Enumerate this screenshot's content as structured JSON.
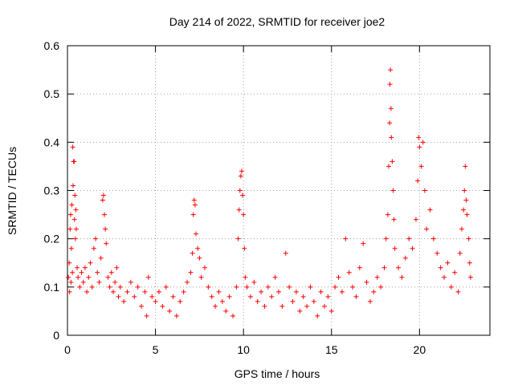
{
  "chart_data": {
    "type": "scatter",
    "title": "Day 214 of 2022, SRMTID for receiver joe2",
    "xlabel": "GPS time / hours",
    "ylabel": "SRMTID / TECUs",
    "xlim": [
      0,
      24
    ],
    "ylim": [
      0,
      0.6
    ],
    "xticks": [
      0,
      5,
      10,
      15,
      20
    ],
    "yticks": [
      0,
      0.1,
      0.2,
      0.3,
      0.4,
      0.5,
      0.6
    ],
    "xtick_labels": [
      "0",
      "5",
      "10",
      "15",
      "20"
    ],
    "ytick_labels": [
      "0",
      "0.1",
      "0.2",
      "0.3",
      "0.4",
      "0.5",
      "0.6"
    ],
    "grid": true,
    "marker": "+",
    "color": "#ff0000",
    "series": [
      {
        "name": "SRMTID",
        "points": [
          [
            0.05,
            0.12
          ],
          [
            0.1,
            0.15
          ],
          [
            0.12,
            0.09
          ],
          [
            0.15,
            0.22
          ],
          [
            0.18,
            0.25
          ],
          [
            0.2,
            0.11
          ],
          [
            0.22,
            0.18
          ],
          [
            0.25,
            0.27
          ],
          [
            0.28,
            0.13
          ],
          [
            0.3,
            0.39
          ],
          [
            0.32,
            0.31
          ],
          [
            0.35,
            0.36
          ],
          [
            0.38,
            0.36
          ],
          [
            0.4,
            0.24
          ],
          [
            0.42,
            0.29
          ],
          [
            0.45,
            0.2
          ],
          [
            0.48,
            0.26
          ],
          [
            0.5,
            0.22
          ],
          [
            0.55,
            0.14
          ],
          [
            0.6,
            0.12
          ],
          [
            0.7,
            0.1
          ],
          [
            0.8,
            0.13
          ],
          [
            0.9,
            0.11
          ],
          [
            1.0,
            0.14
          ],
          [
            1.1,
            0.09
          ],
          [
            1.2,
            0.12
          ],
          [
            1.3,
            0.15
          ],
          [
            1.4,
            0.1
          ],
          [
            1.5,
            0.18
          ],
          [
            1.6,
            0.2
          ],
          [
            1.7,
            0.13
          ],
          [
            1.8,
            0.11
          ],
          [
            1.9,
            0.16
          ],
          [
            2.0,
            0.28
          ],
          [
            2.05,
            0.29
          ],
          [
            2.1,
            0.25
          ],
          [
            2.15,
            0.22
          ],
          [
            2.2,
            0.19
          ],
          [
            2.3,
            0.12
          ],
          [
            2.4,
            0.1
          ],
          [
            2.5,
            0.13
          ],
          [
            2.6,
            0.09
          ],
          [
            2.7,
            0.11
          ],
          [
            2.8,
            0.14
          ],
          [
            2.9,
            0.08
          ],
          [
            3.0,
            0.1
          ],
          [
            3.2,
            0.07
          ],
          [
            3.4,
            0.09
          ],
          [
            3.6,
            0.11
          ],
          [
            3.8,
            0.08
          ],
          [
            4.0,
            0.1
          ],
          [
            4.2,
            0.06
          ],
          [
            4.4,
            0.09
          ],
          [
            4.5,
            0.04
          ],
          [
            4.6,
            0.12
          ],
          [
            4.8,
            0.08
          ],
          [
            5.0,
            0.07
          ],
          [
            5.2,
            0.09
          ],
          [
            5.4,
            0.06
          ],
          [
            5.6,
            0.1
          ],
          [
            5.8,
            0.05
          ],
          [
            6.0,
            0.08
          ],
          [
            6.2,
            0.04
          ],
          [
            6.4,
            0.07
          ],
          [
            6.6,
            0.09
          ],
          [
            6.8,
            0.11
          ],
          [
            7.0,
            0.13
          ],
          [
            7.1,
            0.17
          ],
          [
            7.15,
            0.25
          ],
          [
            7.2,
            0.28
          ],
          [
            7.25,
            0.27
          ],
          [
            7.3,
            0.21
          ],
          [
            7.4,
            0.18
          ],
          [
            7.5,
            0.16
          ],
          [
            7.6,
            0.12
          ],
          [
            7.8,
            0.14
          ],
          [
            8.0,
            0.1
          ],
          [
            8.2,
            0.08
          ],
          [
            8.4,
            0.06
          ],
          [
            8.6,
            0.09
          ],
          [
            8.8,
            0.07
          ],
          [
            9.0,
            0.05
          ],
          [
            9.2,
            0.08
          ],
          [
            9.4,
            0.04
          ],
          [
            9.6,
            0.1
          ],
          [
            9.7,
            0.2
          ],
          [
            9.75,
            0.26
          ],
          [
            9.8,
            0.3
          ],
          [
            9.85,
            0.33
          ],
          [
            9.9,
            0.34
          ],
          [
            9.95,
            0.29
          ],
          [
            10.0,
            0.25
          ],
          [
            10.05,
            0.18
          ],
          [
            10.1,
            0.12
          ],
          [
            10.2,
            0.1
          ],
          [
            10.4,
            0.08
          ],
          [
            10.6,
            0.11
          ],
          [
            10.8,
            0.07
          ],
          [
            11.0,
            0.09
          ],
          [
            11.2,
            0.06
          ],
          [
            11.4,
            0.1
          ],
          [
            11.6,
            0.08
          ],
          [
            11.8,
            0.12
          ],
          [
            12.0,
            0.09
          ],
          [
            12.2,
            0.06
          ],
          [
            12.4,
            0.17
          ],
          [
            12.6,
            0.1
          ],
          [
            12.8,
            0.07
          ],
          [
            13.0,
            0.09
          ],
          [
            13.2,
            0.05
          ],
          [
            13.4,
            0.08
          ],
          [
            13.6,
            0.06
          ],
          [
            13.8,
            0.1
          ],
          [
            14.0,
            0.07
          ],
          [
            14.2,
            0.04
          ],
          [
            14.4,
            0.09
          ],
          [
            14.6,
            0.06
          ],
          [
            14.8,
            0.08
          ],
          [
            15.0,
            0.05
          ],
          [
            15.2,
            0.1
          ],
          [
            15.4,
            0.12
          ],
          [
            15.6,
            0.09
          ],
          [
            15.8,
            0.2
          ],
          [
            16.0,
            0.13
          ],
          [
            16.2,
            0.1
          ],
          [
            16.4,
            0.08
          ],
          [
            16.6,
            0.14
          ],
          [
            16.8,
            0.19
          ],
          [
            17.0,
            0.11
          ],
          [
            17.2,
            0.07
          ],
          [
            17.4,
            0.09
          ],
          [
            17.6,
            0.12
          ],
          [
            17.8,
            0.1
          ],
          [
            18.0,
            0.14
          ],
          [
            18.1,
            0.2
          ],
          [
            18.2,
            0.25
          ],
          [
            18.25,
            0.35
          ],
          [
            18.3,
            0.44
          ],
          [
            18.32,
            0.52
          ],
          [
            18.35,
            0.55
          ],
          [
            18.38,
            0.47
          ],
          [
            18.4,
            0.41
          ],
          [
            18.45,
            0.36
          ],
          [
            18.5,
            0.3
          ],
          [
            18.55,
            0.24
          ],
          [
            18.6,
            0.18
          ],
          [
            18.8,
            0.14
          ],
          [
            19.0,
            0.12
          ],
          [
            19.2,
            0.16
          ],
          [
            19.4,
            0.2
          ],
          [
            19.6,
            0.18
          ],
          [
            19.8,
            0.24
          ],
          [
            19.9,
            0.32
          ],
          [
            19.95,
            0.41
          ],
          [
            20.0,
            0.39
          ],
          [
            20.1,
            0.35
          ],
          [
            20.2,
            0.4
          ],
          [
            20.3,
            0.3
          ],
          [
            20.4,
            0.22
          ],
          [
            20.6,
            0.26
          ],
          [
            20.8,
            0.2
          ],
          [
            21.0,
            0.17
          ],
          [
            21.2,
            0.14
          ],
          [
            21.4,
            0.12
          ],
          [
            21.6,
            0.15
          ],
          [
            21.8,
            0.1
          ],
          [
            22.0,
            0.13
          ],
          [
            22.2,
            0.09
          ],
          [
            22.3,
            0.17
          ],
          [
            22.4,
            0.22
          ],
          [
            22.5,
            0.26
          ],
          [
            22.55,
            0.3
          ],
          [
            22.6,
            0.35
          ],
          [
            22.65,
            0.28
          ],
          [
            22.7,
            0.25
          ],
          [
            22.8,
            0.2
          ],
          [
            22.85,
            0.15
          ],
          [
            22.9,
            0.12
          ]
        ]
      }
    ]
  }
}
